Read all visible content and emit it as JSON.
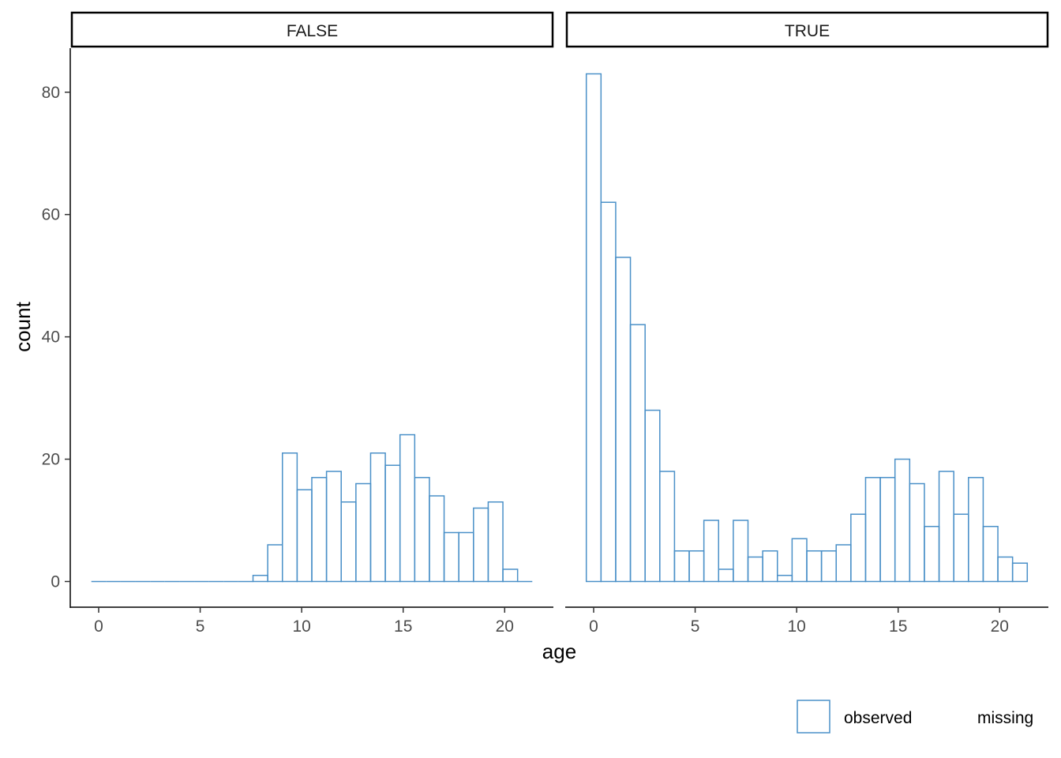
{
  "chart_data": {
    "type": "bar",
    "subtype": "histogram-facet",
    "xlabel": "age",
    "ylabel": "count",
    "xlim": [
      -1.4,
      22.4
    ],
    "ylim": [
      -4.2,
      87.2
    ],
    "x_ticks": [
      0,
      5,
      10,
      15,
      20
    ],
    "y_ticks": [
      0,
      20,
      40,
      60,
      80
    ],
    "grid": false,
    "bar_outline_color": "#4a90c8",
    "bin_width": 0.7241,
    "bin_start": -0.362,
    "legend": {
      "position": "bottom-right",
      "items": [
        {
          "label": "observed",
          "color": "#4a90c8"
        },
        {
          "label": "missing",
          "color": null
        }
      ]
    },
    "panels": [
      {
        "label": "FALSE",
        "values": [
          0,
          0,
          0,
          0,
          0,
          0,
          0,
          0,
          0,
          0,
          0,
          1,
          6,
          21,
          15,
          17,
          18,
          13,
          16,
          21,
          19,
          24,
          17,
          14,
          8,
          8,
          12,
          13,
          2,
          0
        ]
      },
      {
        "label": "TRUE",
        "values": [
          83,
          62,
          53,
          42,
          28,
          18,
          5,
          5,
          10,
          2,
          10,
          4,
          5,
          1,
          7,
          5,
          5,
          6,
          11,
          17,
          17,
          20,
          16,
          9,
          18,
          11,
          17,
          9,
          4,
          3
        ]
      }
    ]
  }
}
